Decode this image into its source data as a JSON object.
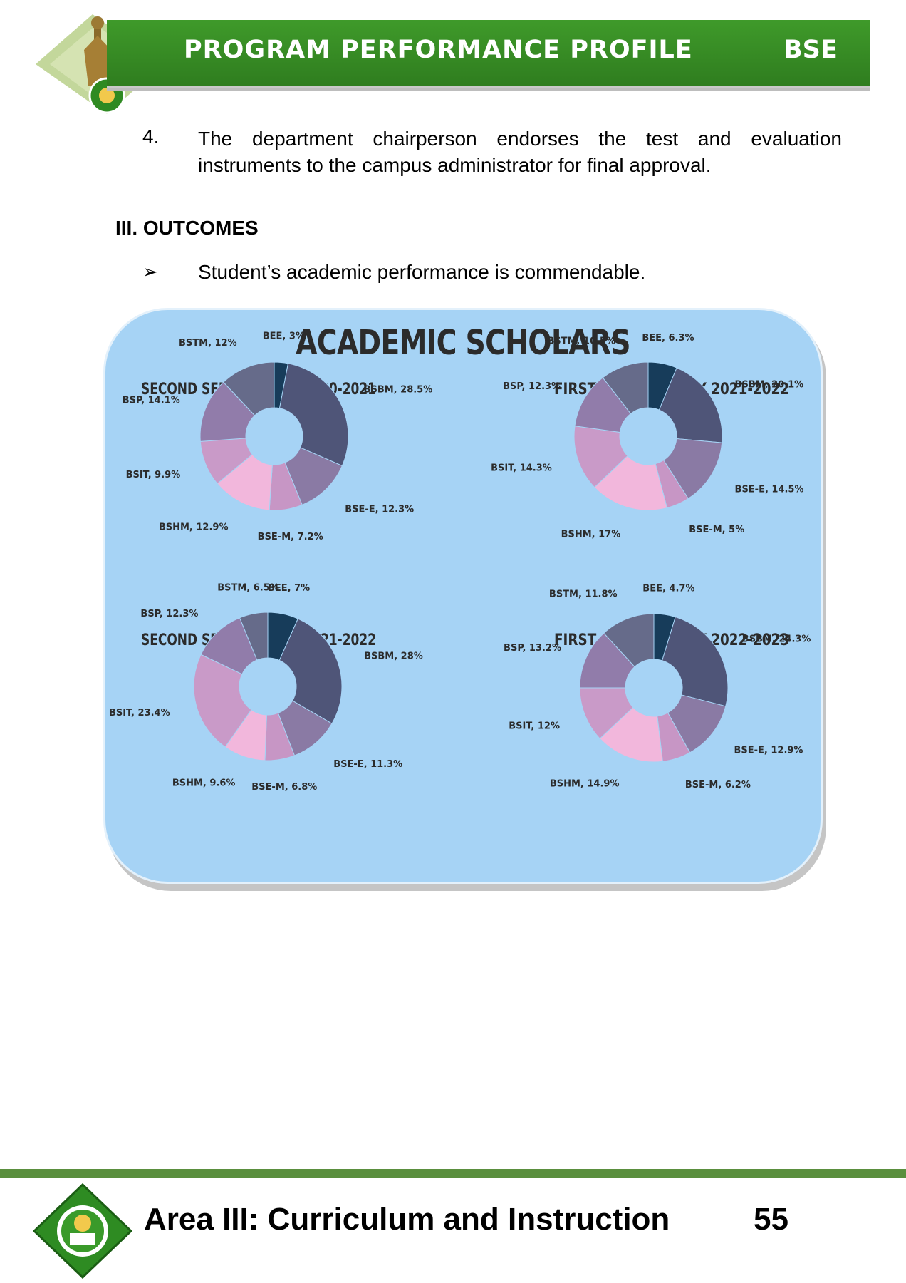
{
  "header": {
    "title": "PROGRAM PERFORMANCE PROFILE",
    "program": "BSE"
  },
  "step": {
    "number": "4.",
    "text": "The department chairperson endorses the test and evaluation instruments to the campus administrator for final approval."
  },
  "section": {
    "heading": "III. OUTCOMES"
  },
  "bullet": {
    "marker": "➢",
    "text": "Student’s academic performance is commendable."
  },
  "infographic": {
    "title": "ACADEMIC SCHOLARS",
    "colors": {
      "BEE": "#173c5a",
      "BSBM": "#4f5578",
      "BSE-E": "#8a7aa4",
      "BSE-M": "#c796c5",
      "BSHM": "#f2b7dc",
      "BSIT": "#c99ac8",
      "BSP": "#917caa",
      "BSTM": "#666b8a"
    }
  },
  "chart_data": [
    {
      "type": "pie",
      "title": "SECOND SEMESTER, AY 2020-2021",
      "categories": [
        "BEE",
        "BSBM",
        "BSE-E",
        "BSE-M",
        "BSHM",
        "BSIT",
        "BSP",
        "BSTM"
      ],
      "values": [
        3,
        28.5,
        12.3,
        7.2,
        12.9,
        9.9,
        14.1,
        12
      ],
      "labels": [
        "BEE, 3%",
        "BSBM, 28.5%",
        "BSE-E, 12.3%",
        "BSE-M, 7.2%",
        "BSHM, 12.9%",
        "BSIT, 9.9%",
        "BSP, 14.1%",
        "BSTM, 12%"
      ]
    },
    {
      "type": "pie",
      "title": "FIRST SEMESTER, AY 2021-2022",
      "categories": [
        "BEE",
        "BSBM",
        "BSE-E",
        "BSE-M",
        "BSHM",
        "BSIT",
        "BSP",
        "BSTM"
      ],
      "values": [
        6.3,
        20.1,
        14.5,
        5,
        17,
        14.3,
        12.3,
        10.5
      ],
      "labels": [
        "BEE, 6.3%",
        "BSBM, 20.1%",
        "BSE-E, 14.5%",
        "BSE-M, 5%",
        "BSHM, 17%",
        "BSIT, 14.3%",
        "BSP, 12.3%",
        "BSTM, 10.5%"
      ]
    },
    {
      "type": "pie",
      "title": "SECOND SEMESTER, AY 2021-2022",
      "categories": [
        "BEE",
        "BSBM",
        "BSE-E",
        "BSE-M",
        "BSHM",
        "BSIT",
        "BSP",
        "BSTM"
      ],
      "values": [
        7,
        28,
        11.3,
        6.8,
        9.6,
        23.4,
        12.3,
        6.5
      ],
      "labels": [
        "BEE, 7%",
        "BSBM, 28%",
        "BSE-E, 11.3%",
        "BSE-M, 6.8%",
        "BSHM, 9.6%",
        "BSIT, 23.4%",
        "BSP, 12.3%",
        "BSTM, 6.5%"
      ]
    },
    {
      "type": "pie",
      "title": "FIRST SEMESTER, AY 2022-2023",
      "categories": [
        "BEE",
        "BSBM",
        "BSE-E",
        "BSE-M",
        "BSHM",
        "BSIT",
        "BSP",
        "BSTM"
      ],
      "values": [
        4.7,
        24.3,
        12.9,
        6.2,
        14.9,
        12,
        13.2,
        11.8
      ],
      "labels": [
        "BEE, 4.7%",
        "BSBM, 24.3%",
        "BSE-E, 12.9%",
        "BSE-M, 6.2%",
        "BSHM, 14.9%",
        "BSIT, 12%",
        "BSP, 13.2%",
        "BSTM, 11.8%"
      ]
    }
  ],
  "footer": {
    "area": "Area III: Curriculum and Instruction",
    "page": "55"
  }
}
